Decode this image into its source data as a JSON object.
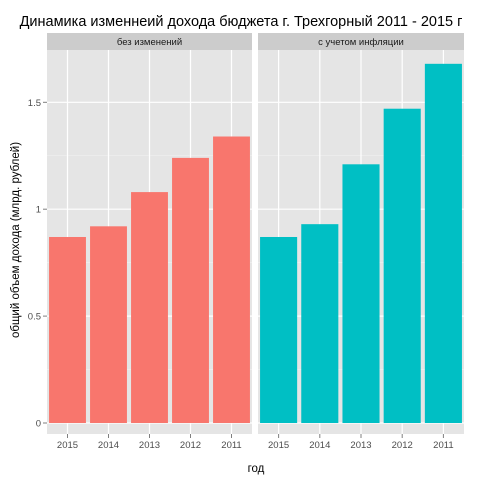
{
  "chart_data": {
    "type": "bar",
    "title": "Динамика изменнеий дохода бюджета г. Трехгорный 2011 - 2015 г",
    "xlabel": "год",
    "ylabel": "общий объем дохода (млрд. рублей)",
    "categories": [
      "2015",
      "2014",
      "2013",
      "2012",
      "2011"
    ],
    "ylim": [
      0,
      1.75
    ],
    "yticks": [
      0,
      0.5,
      1,
      1.5
    ],
    "ytick_labels": [
      "0",
      "0.5",
      "1",
      "1.5"
    ],
    "grid": true,
    "legend": "none",
    "facets": [
      {
        "name": "без изменений",
        "color": "#F8766D",
        "values": [
          0.87,
          0.92,
          1.08,
          1.24,
          1.34
        ]
      },
      {
        "name": "с учетом инфляции",
        "color": "#00BFC4",
        "values": [
          0.87,
          0.93,
          1.21,
          1.47,
          1.68
        ]
      }
    ]
  }
}
